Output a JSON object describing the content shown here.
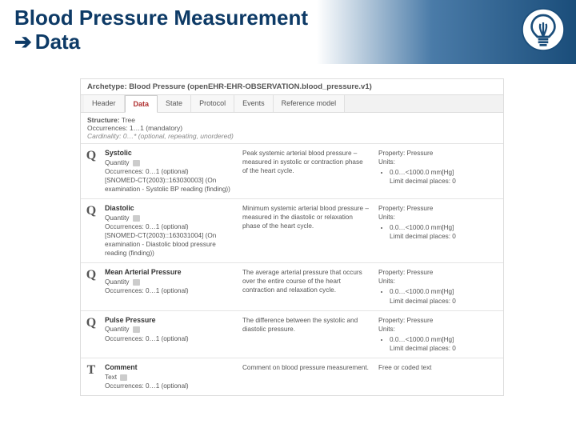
{
  "header": {
    "title": "Blood Pressure Measurement",
    "subtitle": "Data"
  },
  "archetype_label": "Archetype: Blood Pressure (openEHR-EHR-OBSERVATION.blood_pressure.v1)",
  "tabs": [
    "Header",
    "Data",
    "State",
    "Protocol",
    "Events",
    "Reference model"
  ],
  "active_tab": "Data",
  "structure": {
    "label": "Structure:",
    "value": "Tree",
    "occ_label": "Occurrences:",
    "occ_value": "1…1 (mandatory)",
    "card_label": "Cardinality:",
    "card_value": "0…* (optional, repeating, unordered)"
  },
  "unit_line": "0.0…<1000.0 mm[Hg]",
  "decimal_line": "Limit decimal places: 0",
  "rows": [
    {
      "type": "Q",
      "name": "Systolic",
      "qty": "Quantity",
      "occ": "Occurrences: 0…1 (optional)",
      "snomed": "[SNOMED-CT(2003)::163030003] (On examination - Systolic BP reading (finding))",
      "desc": "Peak systemic arterial blood pressure – measured in systolic or contraction phase of the heart cycle.",
      "prop": "Property: Pressure",
      "units_label": "Units:",
      "units": true
    },
    {
      "type": "Q",
      "name": "Diastolic",
      "qty": "Quantity",
      "occ": "Occurrences: 0…1 (optional)",
      "snomed": "[SNOMED-CT(2003)::163031004] (On examination - Diastolic blood pressure reading (finding))",
      "desc": "Minimum systemic arterial blood pressure – measured in the diastolic or relaxation phase of the heart cycle.",
      "prop": "Property: Pressure",
      "units_label": "Units:",
      "units": true
    },
    {
      "type": "Q",
      "name": "Mean Arterial Pressure",
      "qty": "Quantity",
      "occ": "Occurrences: 0…1 (optional)",
      "snomed": "",
      "desc": "The average arterial pressure that occurs over the entire course of the heart contraction and relaxation cycle.",
      "prop": "Property: Pressure",
      "units_label": "Units:",
      "units": true
    },
    {
      "type": "Q",
      "name": "Pulse Pressure",
      "qty": "Quantity",
      "occ": "Occurrences: 0…1 (optional)",
      "snomed": "",
      "desc": "The difference between the systolic and diastolic pressure.",
      "prop": "Property: Pressure",
      "units_label": "Units:",
      "units": true
    },
    {
      "type": "T",
      "name": "Comment",
      "qty": "Text",
      "occ": "Occurrences: 0…1 (optional)",
      "snomed": "",
      "desc": "Comment on blood pressure measurement.",
      "prop": "Free or coded text",
      "units_label": "",
      "units": false
    }
  ]
}
